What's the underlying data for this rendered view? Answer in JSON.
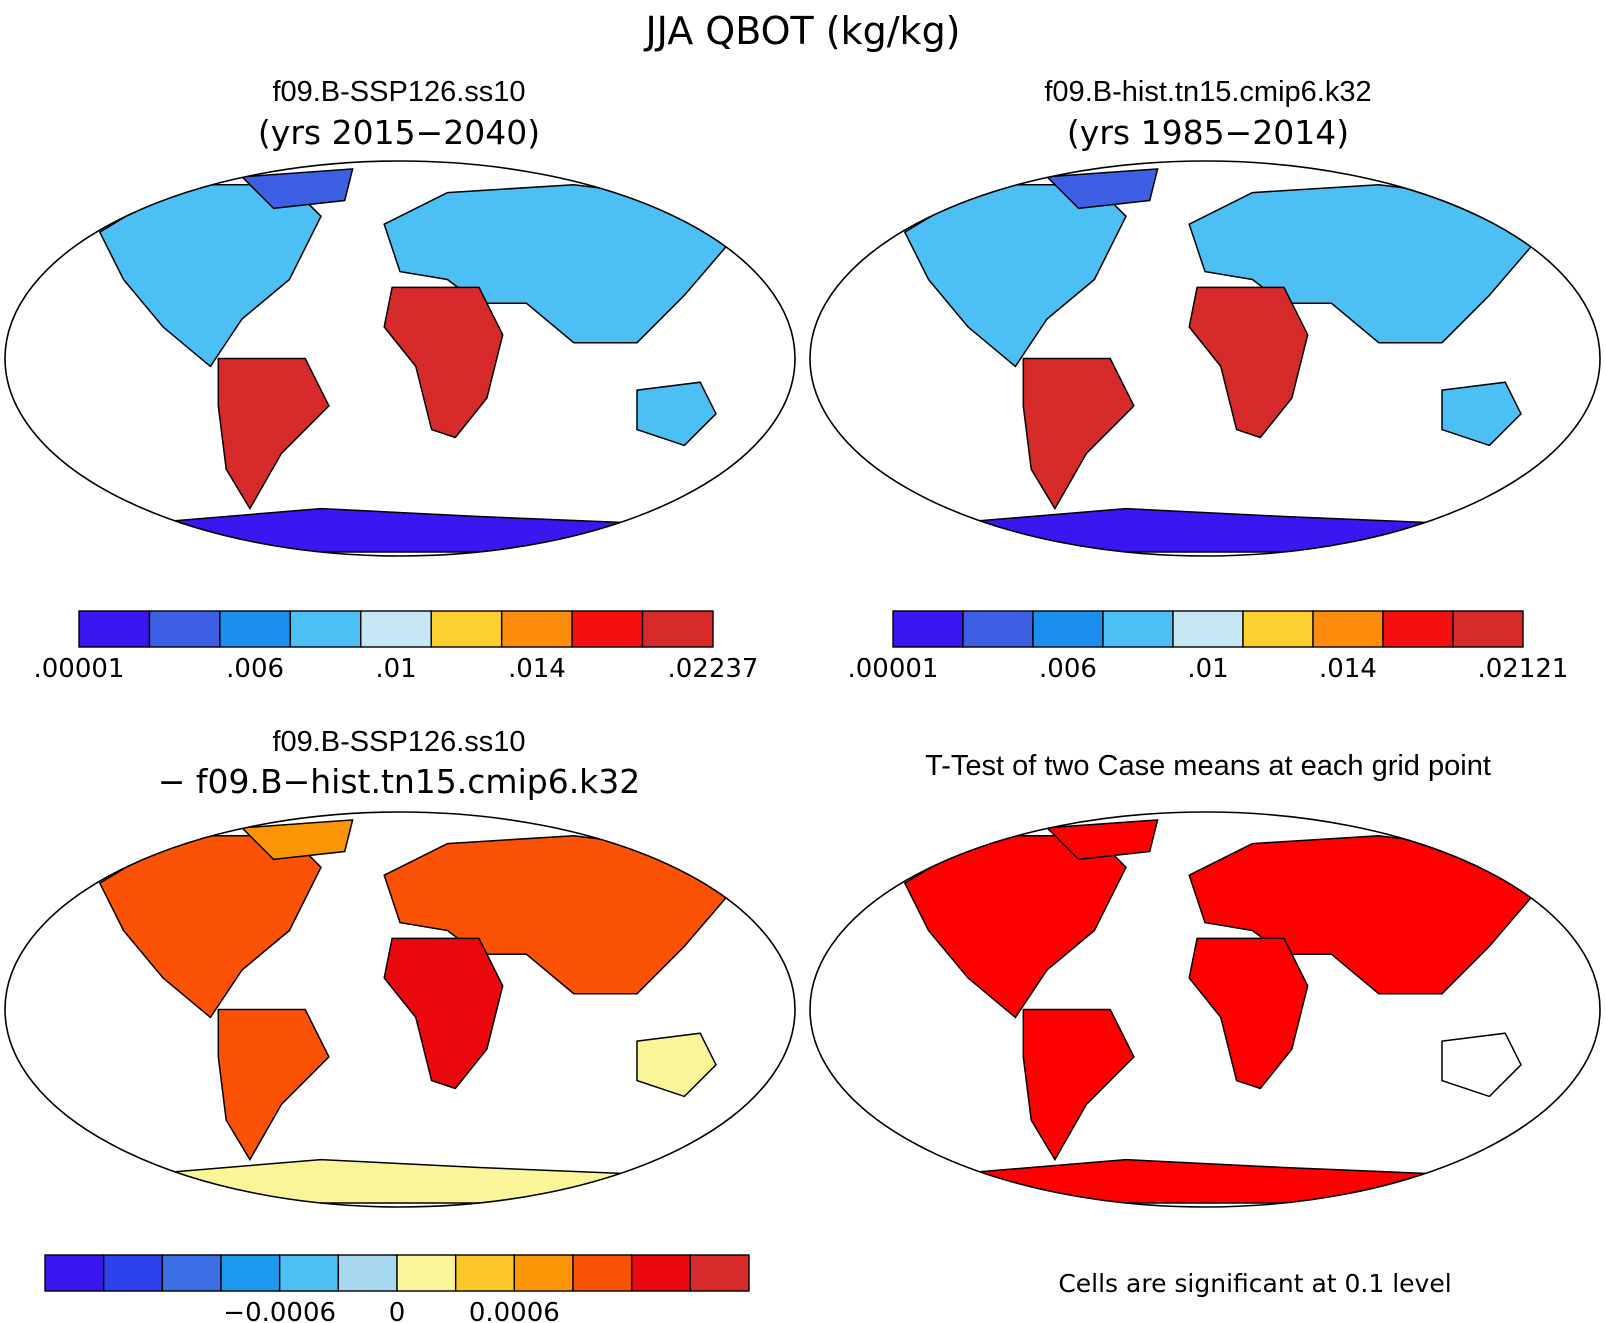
{
  "figure": {
    "title": "JJA QBOT (kg/kg)"
  },
  "panels": [
    {
      "id": "ssp",
      "title": "f09.B-SSP126.ss10",
      "subtitle": "(yrs 2015−2040)",
      "type": "field"
    },
    {
      "id": "hist",
      "title": "f09.B-hist.tn15.cmip6.k32",
      "subtitle": "(yrs 1985−2014)",
      "type": "field"
    },
    {
      "id": "diff",
      "title": "f09.B-SSP126.ss10",
      "subtitle": "− f09.B−hist.tn15.cmip6.k32",
      "type": "difference"
    },
    {
      "id": "ttest",
      "title": "T-Test of two Case means at each grid point",
      "subtitle": "",
      "type": "significance",
      "note": "Cells are significant at 0.1 level",
      "significant_color": "#ff0000"
    }
  ],
  "colorbars": [
    {
      "panel": "ssp",
      "colors": [
        "#3b16f0",
        "#3c5fe3",
        "#1c8ef0",
        "#4cbff4",
        "#c7e7f5",
        "#fcd12f",
        "#fc8c0a",
        "#f70e0e",
        "#d72b2b"
      ],
      "tick_labels": [
        ".00001",
        ".006",
        ".01",
        ".014",
        ".02237"
      ],
      "tick_edges": [
        0,
        2.5,
        4.5,
        6.5,
        9
      ]
    },
    {
      "panel": "hist",
      "colors": [
        "#3b16f0",
        "#3c5fe3",
        "#1c8ef0",
        "#4cbff4",
        "#c7e7f5",
        "#fcd12f",
        "#fc8c0a",
        "#f70e0e",
        "#d72b2b"
      ],
      "tick_labels": [
        ".00001",
        ".006",
        ".01",
        ".014",
        ".02121"
      ],
      "tick_edges": [
        0,
        2.5,
        4.5,
        6.5,
        9
      ]
    },
    {
      "panel": "diff",
      "colors": [
        "#3b16f0",
        "#2d42ec",
        "#3c6fe6",
        "#1c98f0",
        "#4cbff4",
        "#a8d8f0",
        "#fbf59a",
        "#fcc72a",
        "#fc9505",
        "#fc5205",
        "#e8080e",
        "#d72b2b"
      ],
      "tick_labels": [
        "−0.0006",
        "0",
        "0.0006"
      ],
      "tick_edges": [
        4,
        6,
        8
      ]
    }
  ],
  "map_colors": {
    "ocean": "#ffffff",
    "coast": "#000000",
    "field_land": "#4cbff4",
    "field_tropics": "#d72b2b",
    "field_subtropics": "#fc8c0a",
    "field_antarctica": "#3b16f0",
    "diff_land": "#fc5205",
    "diff_tropics": "#e8080e",
    "diff_antarctica": "#fbf59a",
    "ttest_land": "#ff0000"
  }
}
